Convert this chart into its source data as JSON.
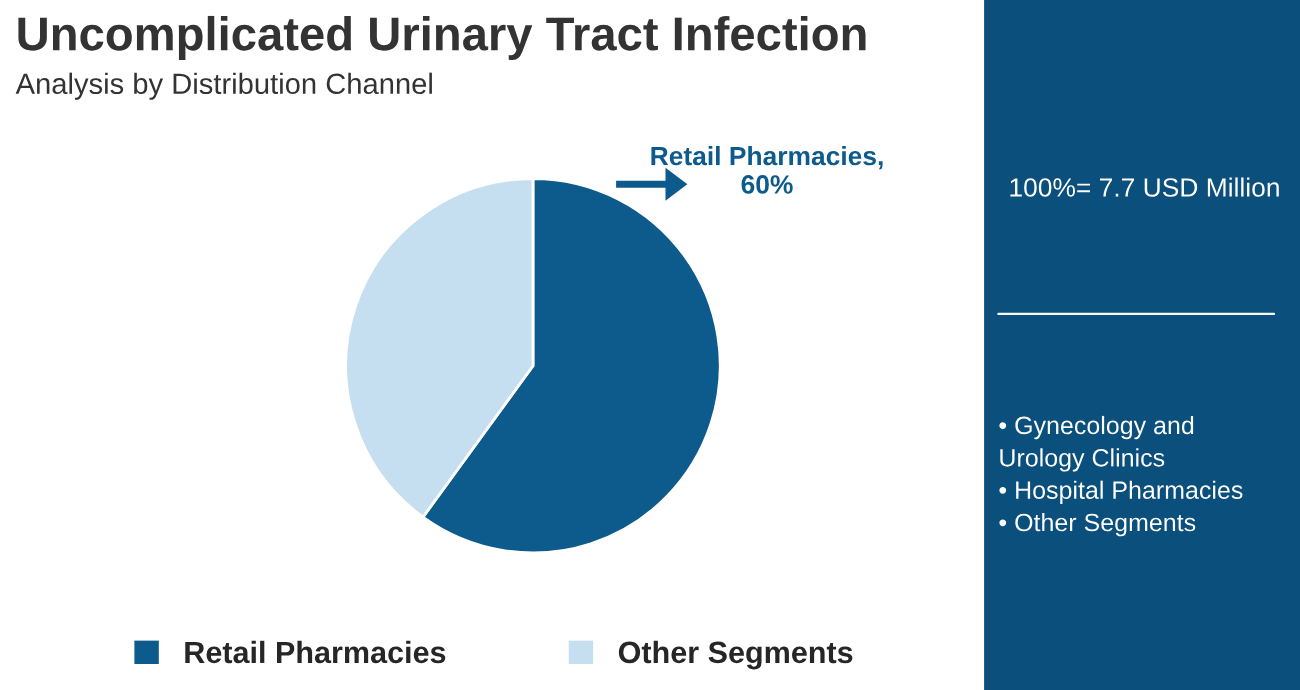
{
  "chart_data": {
    "type": "pie",
    "title": "Uncomplicated Urinary Tract Infection",
    "subtitle": "Analysis by Distribution Channel",
    "categories": [
      "Retail Pharmacies",
      "Other Segments"
    ],
    "values": [
      60,
      40
    ],
    "colors": [
      "#0d5a8c",
      "#c6dff0"
    ],
    "value_labels": [
      "Retail Pharmacies,\n60%",
      null
    ],
    "legend": "bottom",
    "annotations": [
      "100%= 7.7 USD Million",
      "• Gynecology and\nUrology Clinics\n• Hospital Pharmacies\n• Other Segments"
    ]
  }
}
